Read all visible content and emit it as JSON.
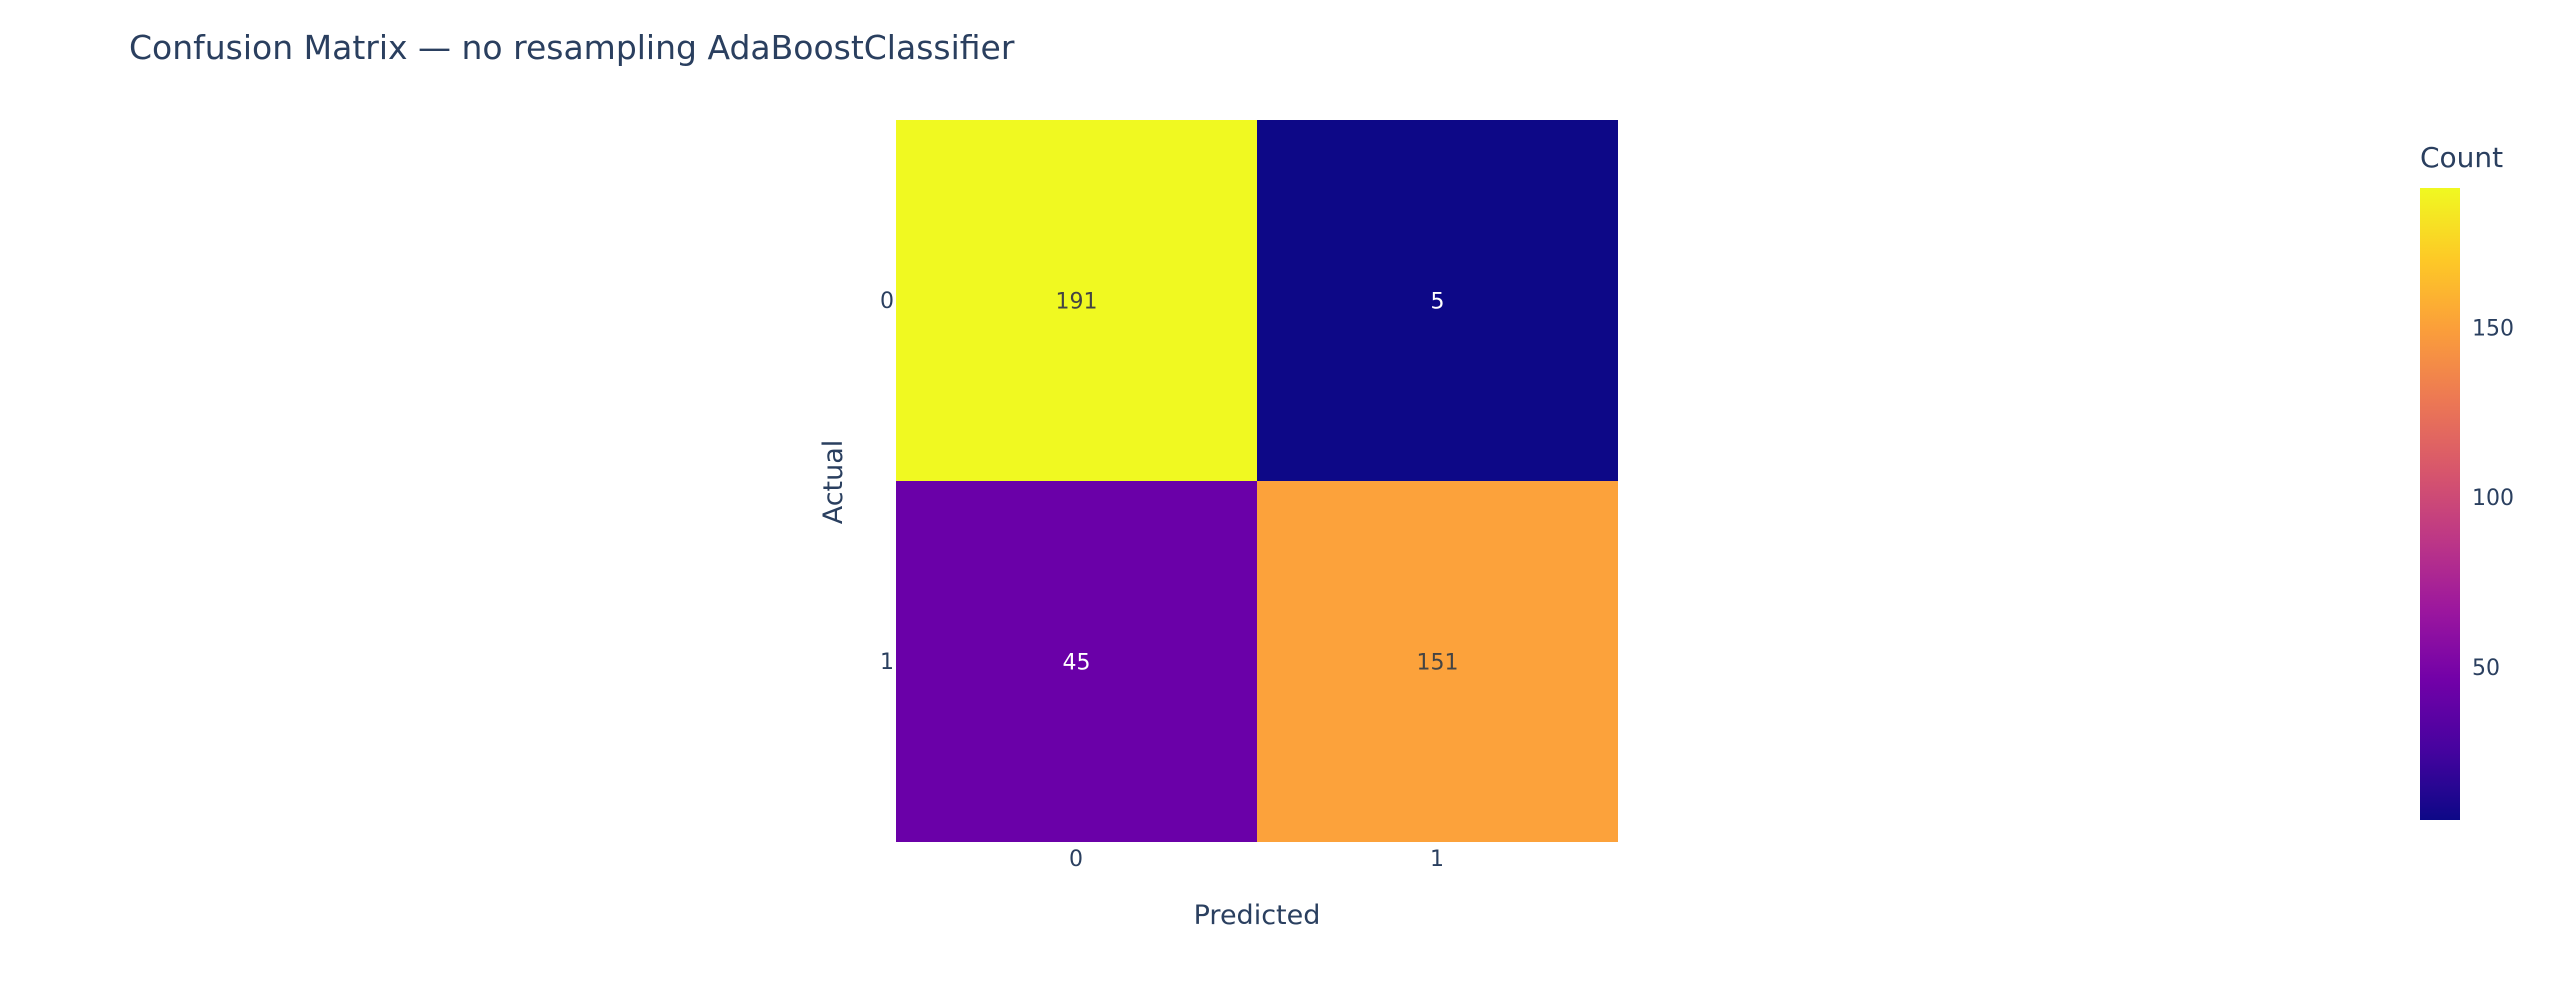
{
  "chart_data": {
    "type": "heatmap",
    "title": "Confusion Matrix — no resampling AdaBoostClassifier",
    "xlabel": "Predicted",
    "ylabel": "Actual",
    "x_categories": [
      "0",
      "1"
    ],
    "y_categories": [
      "0",
      "1"
    ],
    "z": [
      [
        191,
        5
      ],
      [
        45,
        151
      ]
    ],
    "colorscale": "plasma",
    "colorbar": {
      "title": "Count",
      "range": [
        5,
        191
      ],
      "ticks": [
        50,
        100,
        150
      ]
    },
    "grid": false,
    "cell_colors": [
      [
        "#f0f921",
        "#0d0887"
      ],
      [
        "#6a00a8",
        "#fca23b"
      ]
    ]
  }
}
